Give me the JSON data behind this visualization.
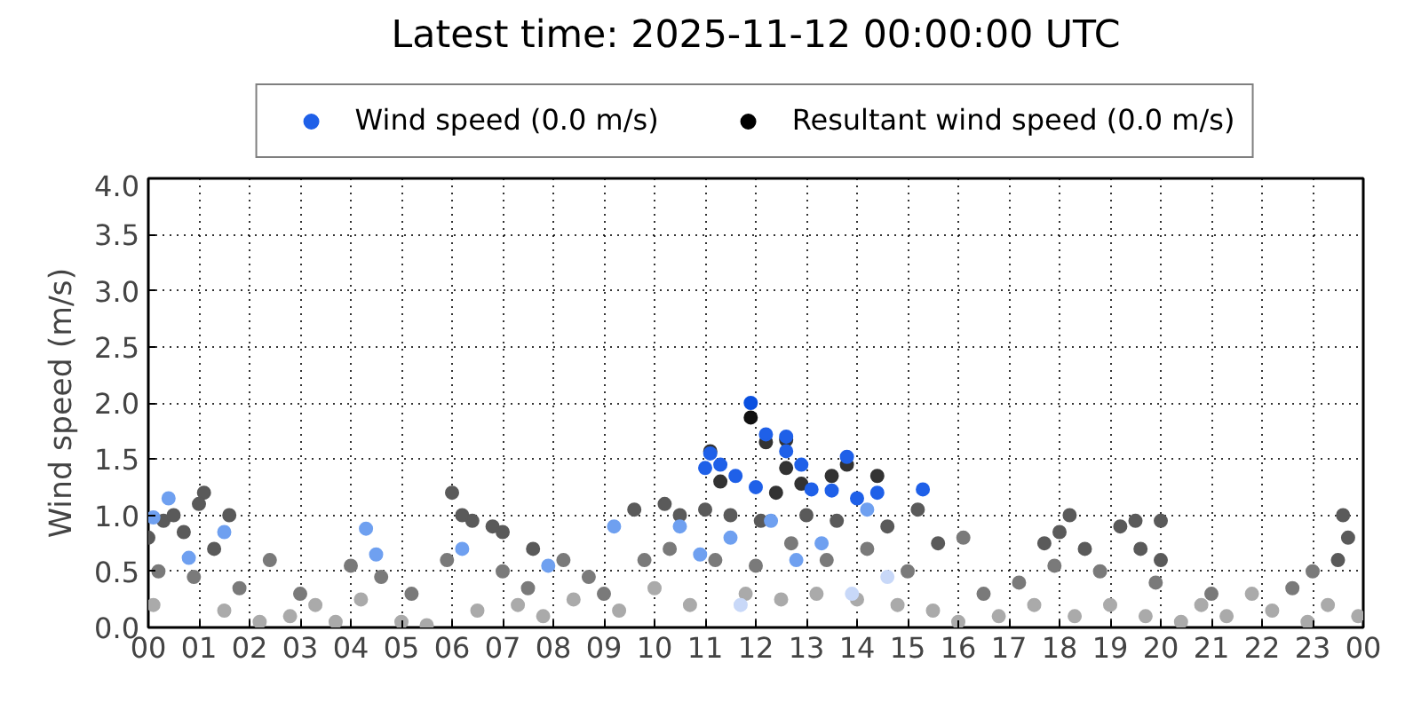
{
  "chart_data": {
    "type": "scatter",
    "title": "Latest time: 2025-11-12 00:00:00 UTC",
    "ylabel": "Wind speed (m/s)",
    "xlim": [
      0,
      24
    ],
    "xticks": [
      {
        "value": 0,
        "label": "00"
      },
      {
        "value": 1,
        "label": "01"
      },
      {
        "value": 2,
        "label": "02"
      },
      {
        "value": 3,
        "label": "03"
      },
      {
        "value": 4,
        "label": "04"
      },
      {
        "value": 5,
        "label": "05"
      },
      {
        "value": 6,
        "label": "06"
      },
      {
        "value": 7,
        "label": "07"
      },
      {
        "value": 8,
        "label": "08"
      },
      {
        "value": 9,
        "label": "09"
      },
      {
        "value": 10,
        "label": "10"
      },
      {
        "value": 11,
        "label": "11"
      },
      {
        "value": 12,
        "label": "12"
      },
      {
        "value": 13,
        "label": "13"
      },
      {
        "value": 14,
        "label": "14"
      },
      {
        "value": 15,
        "label": "15"
      },
      {
        "value": 16,
        "label": "16"
      },
      {
        "value": 17,
        "label": "17"
      },
      {
        "value": 18,
        "label": "18"
      },
      {
        "value": 19,
        "label": "19"
      },
      {
        "value": 20,
        "label": "20"
      },
      {
        "value": 21,
        "label": "21"
      },
      {
        "value": 22,
        "label": "22"
      },
      {
        "value": 23,
        "label": "23"
      },
      {
        "value": 24,
        "label": "00"
      }
    ],
    "ylim": [
      0,
      4
    ],
    "yticks": [
      {
        "value": 0,
        "label": "0.0"
      },
      {
        "value": 0.5,
        "label": "0.5"
      },
      {
        "value": 1,
        "label": "1.0"
      },
      {
        "value": 1.5,
        "label": "1.5"
      },
      {
        "value": 2,
        "label": "2.0"
      },
      {
        "value": 2.5,
        "label": "2.5"
      },
      {
        "value": 3,
        "label": "3.0"
      },
      {
        "value": 3.5,
        "label": "3.5"
      },
      {
        "value": 4,
        "label": "4.0"
      }
    ],
    "grid": true,
    "legend": "top",
    "marker": "circle",
    "series": [
      {
        "name": "Resultant wind speed (0.0 m/s)",
        "color": "#000000",
        "x": [
          0.2,
          0.9,
          1.8,
          2.4,
          3.0,
          4.0,
          4.6,
          5.2,
          5.9,
          7.0,
          7.5,
          8.2,
          8.7,
          9.0,
          9.8,
          10.3,
          11.2,
          12.0,
          12.7,
          13.4,
          14.2,
          15.0,
          16.1,
          16.5,
          17.2,
          17.9,
          18.8,
          19.9,
          21.0,
          22.6,
          23.0,
          0.1,
          1.5,
          2.2,
          2.8,
          3.3,
          3.7,
          4.2,
          5.0,
          5.5,
          6.5,
          7.3,
          7.8,
          8.4,
          9.3,
          10.0,
          10.7,
          11.8,
          12.5,
          13.2,
          14.0,
          14.8,
          15.5,
          16.0,
          16.8,
          17.5,
          18.3,
          19.0,
          19.7,
          20.4,
          20.8,
          21.3,
          21.8,
          22.2,
          22.9,
          23.3,
          23.9,
          0.0,
          0.3,
          0.5,
          0.7,
          1.1,
          1.0,
          1.6,
          1.3,
          6.0,
          6.2,
          6.4,
          6.8,
          7.0,
          7.6,
          9.6,
          10.2,
          10.5,
          11.0,
          11.5,
          12.1,
          13.0,
          13.6,
          14.6,
          15.2,
          15.6,
          17.7,
          18.2,
          18.0,
          18.5,
          19.2,
          19.5,
          19.6,
          20.0,
          20.0,
          23.6,
          23.7,
          23.5,
          11.9,
          11.1,
          12.2,
          12.6,
          12.6,
          12.9,
          13.8,
          14.4,
          13.5,
          11.3,
          12.4
        ],
        "values": [
          0.5,
          0.45,
          0.35,
          0.6,
          0.3,
          0.55,
          0.45,
          0.3,
          0.6,
          0.5,
          0.35,
          0.6,
          0.45,
          0.3,
          0.6,
          0.7,
          0.6,
          0.55,
          0.75,
          0.6,
          0.7,
          0.5,
          0.8,
          0.3,
          0.4,
          0.55,
          0.5,
          0.4,
          0.3,
          0.35,
          0.5,
          0.2,
          0.15,
          0.05,
          0.1,
          0.2,
          0.05,
          0.25,
          0.05,
          0.02,
          0.15,
          0.2,
          0.1,
          0.25,
          0.15,
          0.35,
          0.2,
          0.3,
          0.25,
          0.3,
          0.25,
          0.2,
          0.15,
          0.05,
          0.1,
          0.2,
          0.1,
          0.2,
          0.1,
          0.05,
          0.2,
          0.1,
          0.3,
          0.15,
          0.05,
          0.2,
          0.1,
          0.8,
          0.95,
          1.0,
          0.85,
          1.2,
          1.1,
          1.0,
          0.7,
          1.2,
          1.0,
          0.95,
          0.9,
          0.85,
          0.7,
          1.05,
          1.1,
          1.0,
          1.05,
          1.0,
          0.95,
          1.0,
          0.95,
          0.9,
          1.05,
          0.75,
          0.75,
          1.0,
          0.85,
          0.7,
          0.9,
          0.95,
          0.7,
          0.95,
          0.6,
          1.0,
          0.8,
          0.6,
          1.87,
          1.57,
          1.65,
          1.67,
          1.42,
          1.28,
          1.45,
          1.35,
          1.35,
          1.3,
          1.2
        ],
        "colors": [
          "#7a7a7a",
          "#7a7a7a",
          "#7a7a7a",
          "#7a7a7a",
          "#7a7a7a",
          "#7a7a7a",
          "#7a7a7a",
          "#7a7a7a",
          "#7a7a7a",
          "#7a7a7a",
          "#7a7a7a",
          "#7a7a7a",
          "#7a7a7a",
          "#7a7a7a",
          "#7a7a7a",
          "#7a7a7a",
          "#7a7a7a",
          "#7a7a7a",
          "#7a7a7a",
          "#7a7a7a",
          "#7a7a7a",
          "#7a7a7a",
          "#7a7a7a",
          "#7a7a7a",
          "#7a7a7a",
          "#7a7a7a",
          "#7a7a7a",
          "#7a7a7a",
          "#7a7a7a",
          "#7a7a7a",
          "#7a7a7a",
          "#aaaaaa",
          "#aaaaaa",
          "#aaaaaa",
          "#aaaaaa",
          "#aaaaaa",
          "#aaaaaa",
          "#aaaaaa",
          "#aaaaaa",
          "#aaaaaa",
          "#aaaaaa",
          "#aaaaaa",
          "#aaaaaa",
          "#aaaaaa",
          "#aaaaaa",
          "#aaaaaa",
          "#aaaaaa",
          "#aaaaaa",
          "#aaaaaa",
          "#aaaaaa",
          "#aaaaaa",
          "#aaaaaa",
          "#aaaaaa",
          "#aaaaaa",
          "#aaaaaa",
          "#aaaaaa",
          "#aaaaaa",
          "#aaaaaa",
          "#aaaaaa",
          "#aaaaaa",
          "#aaaaaa",
          "#aaaaaa",
          "#aaaaaa",
          "#aaaaaa",
          "#aaaaaa",
          "#aaaaaa",
          "#aaaaaa",
          "#5a5a5a",
          "#5a5a5a",
          "#5a5a5a",
          "#5a5a5a",
          "#5a5a5a",
          "#5a5a5a",
          "#5a5a5a",
          "#5a5a5a",
          "#5a5a5a",
          "#5a5a5a",
          "#5a5a5a",
          "#5a5a5a",
          "#5a5a5a",
          "#5a5a5a",
          "#5a5a5a",
          "#5a5a5a",
          "#5a5a5a",
          "#5a5a5a",
          "#5a5a5a",
          "#5a5a5a",
          "#5a5a5a",
          "#5a5a5a",
          "#5a5a5a",
          "#5a5a5a",
          "#5a5a5a",
          "#5a5a5a",
          "#5a5a5a",
          "#5a5a5a",
          "#5a5a5a",
          "#5a5a5a",
          "#5a5a5a",
          "#5a5a5a",
          "#5a5a5a",
          "#5a5a5a",
          "#5a5a5a",
          "#5a5a5a",
          "#5a5a5a",
          "#111111",
          "#333333",
          "#333333",
          "#333333",
          "#333333",
          "#333333",
          "#333333",
          "#333333",
          "#333333",
          "#333333",
          "#333333"
        ]
      },
      {
        "name": "Wind speed (0.0 m/s)",
        "color": "#1f60e8",
        "x": [
          11.7,
          13.9,
          14.6,
          4.5,
          0.8,
          7.9,
          6.2,
          12.8,
          10.9,
          14.2,
          13.3,
          12.3,
          11.5,
          9.2,
          10.5,
          1.5,
          4.3,
          0.1,
          0.4,
          14.0,
          13.5,
          11.6,
          12.0,
          14.4,
          15.3,
          13.1,
          13.8,
          12.9,
          12.6,
          12.6,
          12.2,
          11.0,
          11.3,
          11.1,
          11.9
        ],
        "values": [
          0.2,
          0.3,
          0.45,
          0.65,
          0.62,
          0.55,
          0.7,
          0.6,
          0.65,
          1.05,
          0.75,
          0.95,
          0.8,
          0.9,
          0.9,
          0.85,
          0.88,
          0.98,
          1.15,
          1.15,
          1.22,
          1.35,
          1.25,
          1.2,
          1.23,
          1.23,
          1.52,
          1.45,
          1.57,
          1.7,
          1.72,
          1.42,
          1.45,
          1.55,
          2.0
        ],
        "colors": [
          "#c8d8f8",
          "#c8d8f8",
          "#c8d8f8",
          "#6fa0f0",
          "#6fa0f0",
          "#6fa0f0",
          "#6fa0f0",
          "#6fa0f0",
          "#6fa0f0",
          "#6fa0f0",
          "#6fa0f0",
          "#6fa0f0",
          "#6fa0f0",
          "#6fa0f0",
          "#6fa0f0",
          "#6fa0f0",
          "#6fa0f0",
          "#6fa0f0",
          "#6fa0f0",
          "#1f60e8",
          "#1f60e8",
          "#1f60e8",
          "#1f60e8",
          "#1f60e8",
          "#1f60e8",
          "#1f60e8",
          "#1f60e8",
          "#1f60e8",
          "#1f60e8",
          "#1f60e8",
          "#1f60e8",
          "#1f60e8",
          "#1f60e8",
          "#1f60e8",
          "#0a50e0"
        ]
      }
    ]
  }
}
